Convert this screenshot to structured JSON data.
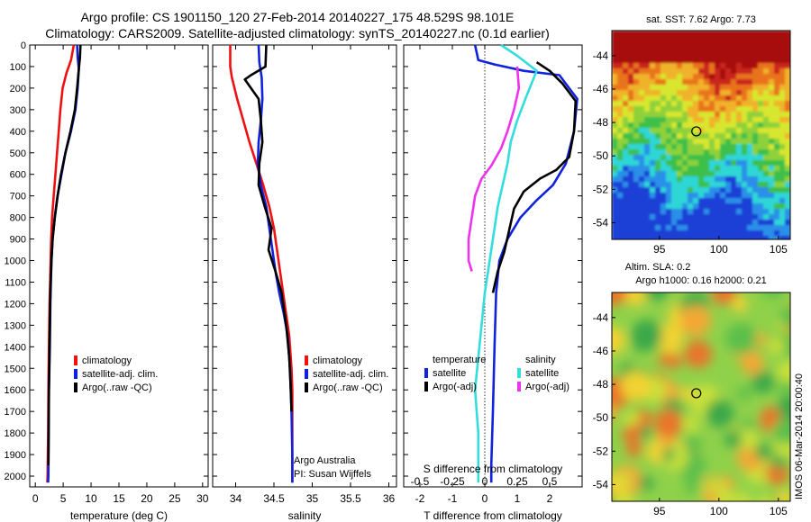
{
  "figure": {
    "title_line1": "Argo profile: CS 1901150_120 27-Feb-2014 20140227_175 48.529S 98.101E",
    "title_line2": "Climatology: CARS2009. Satellite-adjusted climatology: synTS_20140227.nc (0.1d earlier)",
    "vertical_note": "IMOS 06-Mar-2014 20:00:40"
  },
  "colors": {
    "climatology": "#ee1111",
    "satellite": "#1122dd",
    "argo": "#000000",
    "sat_salinity": "#33dddd",
    "argo_salinity": "#ee33ee"
  },
  "chart_data": [
    {
      "id": "temperature",
      "type": "line",
      "xlabel": "temperature (deg C)",
      "xlim": [
        -1,
        31
      ],
      "xticks": [
        0,
        5,
        10,
        15,
        20,
        25,
        30
      ],
      "ylim": [
        0,
        2050
      ],
      "yticks": [
        0,
        100,
        200,
        300,
        400,
        500,
        600,
        700,
        800,
        900,
        1000,
        1100,
        1200,
        1300,
        1400,
        1500,
        1600,
        1700,
        1800,
        1900,
        2000
      ],
      "legend": [
        "climatology",
        "satellite-adj. clim.",
        "Argo(..raw -QC)"
      ],
      "series": [
        {
          "name": "climatology",
          "color_key": "climatology",
          "x": [
            6.9,
            6.4,
            5.6,
            4.9,
            4.5,
            4.2,
            3.9,
            3.6,
            3.3,
            3.0,
            2.85,
            2.75,
            2.65,
            2.55,
            2.45,
            2.35,
            2.3,
            2.25,
            2.2,
            2.15
          ],
          "y": [
            0,
            70,
            130,
            200,
            300,
            400,
            500,
            600,
            700,
            800,
            900,
            1000,
            1100,
            1200,
            1400,
            1600,
            1800,
            1900,
            2000,
            2030
          ]
        },
        {
          "name": "satellite-adj. clim.",
          "color_key": "satellite",
          "x": [
            7.5,
            7.6,
            7.8,
            7.6,
            7.2,
            6.4,
            5.4,
            4.7,
            4.0,
            3.5,
            3.1,
            2.9,
            2.8,
            2.7,
            2.6,
            2.45,
            2.4,
            2.35,
            2.3
          ],
          "y": [
            0,
            60,
            110,
            200,
            300,
            400,
            500,
            600,
            700,
            800,
            900,
            1000,
            1100,
            1200,
            1400,
            1600,
            1800,
            2000,
            2030
          ]
        },
        {
          "name": "Argo(..raw -QC)",
          "color_key": "argo",
          "x": [
            8.1,
            8.0,
            7.8,
            7.5,
            7.1,
            6.3,
            5.4,
            4.6,
            4.0,
            3.5,
            3.1,
            2.9,
            2.75,
            2.65,
            2.55,
            2.45,
            2.4,
            2.35
          ],
          "y": [
            0,
            60,
            110,
            200,
            300,
            400,
            500,
            600,
            700,
            800,
            900,
            1000,
            1100,
            1200,
            1400,
            1600,
            1800,
            1950
          ]
        }
      ]
    },
    {
      "id": "salinity",
      "type": "line",
      "xlabel": "salinity",
      "xlim": [
        33.7,
        36.1
      ],
      "xticks": [
        34,
        34.5,
        35,
        35.5,
        36
      ],
      "ylim": [
        0,
        2050
      ],
      "legend": [
        "climatology",
        "satellite-adj. clim.",
        "Argo(..raw -QC)"
      ],
      "annotations": [
        "Argo Australia",
        "PI: Susan Wijffels"
      ],
      "series": [
        {
          "name": "climatology",
          "color_key": "climatology",
          "x": [
            33.93,
            33.93,
            33.95,
            34.02,
            34.1,
            34.18,
            34.27,
            34.36,
            34.44,
            34.5,
            34.54,
            34.58,
            34.62,
            34.66,
            34.7,
            34.73,
            34.74,
            34.74,
            34.74,
            34.74
          ],
          "y": [
            0,
            100,
            150,
            250,
            350,
            450,
            550,
            650,
            750,
            850,
            950,
            1050,
            1150,
            1250,
            1350,
            1500,
            1600,
            1800,
            2000,
            2030
          ]
        },
        {
          "name": "satellite-adj. clim.",
          "color_key": "satellite",
          "x": [
            34.3,
            34.31,
            34.34,
            34.35,
            34.33,
            34.3,
            34.29,
            34.33,
            34.4,
            34.44,
            34.48,
            34.52,
            34.57,
            34.63,
            34.68,
            34.71,
            34.73,
            34.74,
            34.74
          ],
          "y": [
            0,
            80,
            150,
            250,
            350,
            450,
            550,
            650,
            750,
            850,
            950,
            1050,
            1150,
            1250,
            1350,
            1500,
            1700,
            1900,
            2030
          ]
        },
        {
          "name": "Argo(..raw -QC)",
          "color_key": "argo",
          "x": [
            34.4,
            34.39,
            34.2,
            34.12,
            34.3,
            34.33,
            34.35,
            34.31,
            34.3,
            34.38,
            34.47,
            34.43,
            34.52,
            34.6,
            34.66,
            34.7,
            34.72,
            34.73
          ],
          "y": [
            0,
            100,
            140,
            160,
            250,
            350,
            450,
            550,
            650,
            750,
            850,
            950,
            1050,
            1150,
            1300,
            1450,
            1600,
            1700
          ]
        }
      ]
    },
    {
      "id": "difference",
      "type": "line",
      "xlabel": "T difference from climatology",
      "xlim": [
        -2.5,
        3.0
      ],
      "xticks": [
        -2,
        -1,
        0,
        1,
        2
      ],
      "top_label": "S difference from climatology",
      "top_ticks": [
        "-0.5",
        "-0.25",
        "0",
        "0.25",
        "0.5"
      ],
      "top_tick_positions": [
        -2,
        -1,
        0,
        1,
        2
      ],
      "ylim": [
        0,
        2050
      ],
      "legend_left_title": "temperature",
      "legend_right_title": "salinity",
      "legend": [
        "satellite",
        "Argo(-adj)",
        "satellite",
        "Argo(-adj)"
      ],
      "series": [
        {
          "name": "satellite",
          "group": "temperature",
          "color_key": "satellite",
          "x": [
            -0.3,
            -0.2,
            0.3,
            1.2,
            2.3,
            2.85,
            2.75,
            2.5,
            2.1,
            1.6,
            1.1,
            0.7,
            0.45,
            0.35,
            0.3,
            0.25,
            0.2,
            0.2
          ],
          "y": [
            0,
            70,
            90,
            120,
            140,
            250,
            400,
            550,
            650,
            720,
            800,
            900,
            1000,
            1150,
            1400,
            1700,
            1950,
            2030
          ]
        },
        {
          "name": "Argo(-adj)",
          "group": "temperature",
          "color_key": "argo",
          "x": [
            1.6,
            2.0,
            2.4,
            2.8,
            2.75,
            2.6,
            2.2,
            1.7,
            1.2,
            0.9,
            0.75,
            0.6,
            0.4,
            0.25
          ],
          "y": [
            80,
            120,
            180,
            260,
            400,
            520,
            580,
            620,
            680,
            760,
            860,
            960,
            1050,
            1150
          ]
        },
        {
          "name": "satellite",
          "group": "salinity",
          "color_key": "sat_salinity",
          "x": [
            0.5,
            1.0,
            1.6,
            1.25,
            1.0,
            0.8,
            0.7,
            0.55,
            0.4,
            0.3,
            0.2,
            0.1,
            0.0,
            -0.1,
            -0.2,
            -0.3,
            -0.2,
            -0.2
          ],
          "y": [
            0,
            50,
            120,
            250,
            350,
            450,
            550,
            650,
            750,
            850,
            950,
            1050,
            1150,
            1300,
            1450,
            1600,
            1800,
            2030
          ]
        },
        {
          "name": "Argo(-adj)",
          "group": "salinity",
          "color_key": "argo_salinity",
          "x": [
            1.0,
            1.05,
            0.9,
            0.7,
            0.5,
            0.2,
            -0.1,
            -0.3,
            -0.4,
            -0.5,
            -0.5,
            -0.4
          ],
          "y": [
            100,
            200,
            300,
            400,
            480,
            560,
            620,
            700,
            800,
            900,
            1000,
            1050
          ]
        }
      ]
    },
    {
      "id": "sst_map",
      "type": "heatmap",
      "title": "sat. SST: 7.62  Argo: 7.73",
      "xlim": [
        91,
        106
      ],
      "ylim": [
        -55,
        -42.5
      ],
      "xticks": [
        95,
        100,
        105
      ],
      "yticks": [
        -54,
        -52,
        -50,
        -48,
        -46,
        -44
      ],
      "marker": {
        "lon": 98.1,
        "lat": -48.53
      }
    },
    {
      "id": "sla_map",
      "type": "heatmap",
      "title": "Altim. SLA: 0.2",
      "title_line2": "Argo h1000: 0.16  h2000: 0.21",
      "xlim": [
        91,
        106
      ],
      "ylim": [
        -55,
        -42.5
      ],
      "xticks": [
        95,
        100,
        105
      ],
      "yticks": [
        -54,
        -52,
        -50,
        -48,
        -46,
        -44
      ],
      "marker": {
        "lon": 98.1,
        "lat": -48.53
      }
    }
  ]
}
